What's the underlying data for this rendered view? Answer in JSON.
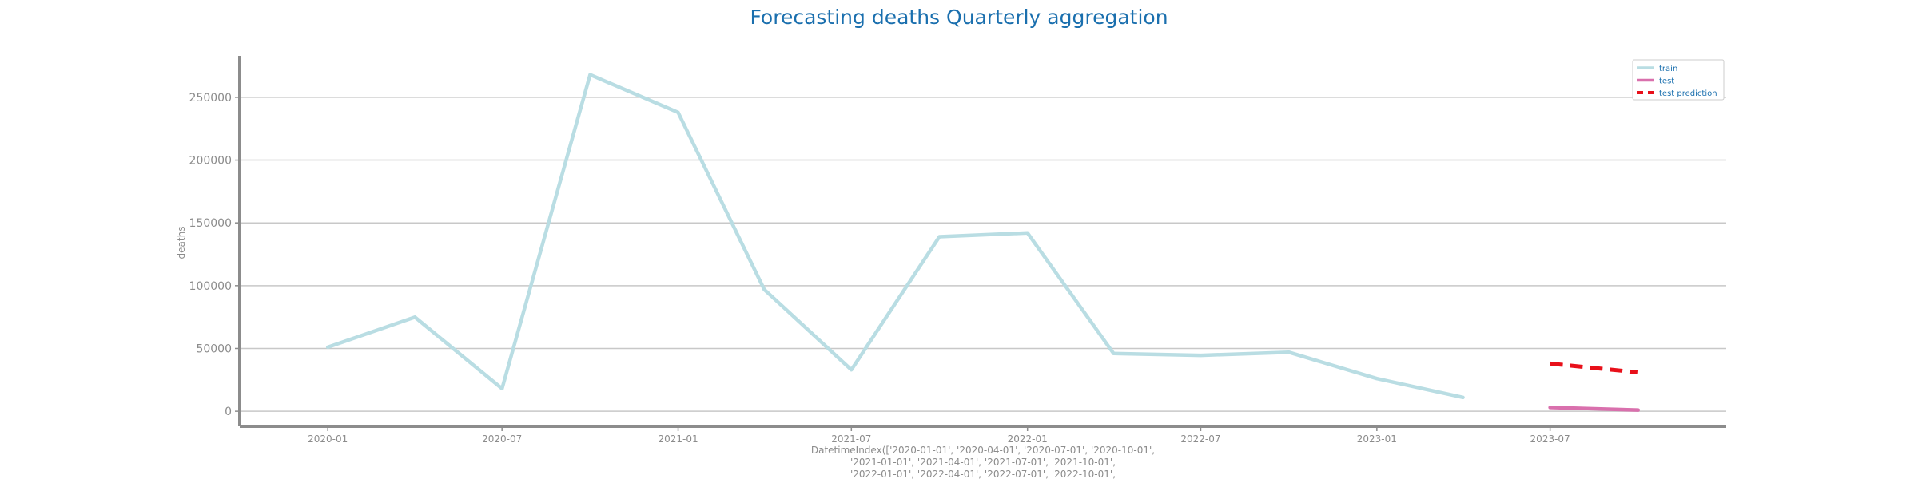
{
  "chart_data": {
    "type": "line",
    "title": "Forecasting deaths Quarterly aggregation",
    "ylabel": "deaths",
    "xlabel_lines": [
      "DatetimeIndex(['2020-01-01', '2020-04-01', '2020-07-01', '2020-10-01',",
      "'2021-01-01', '2021-04-01', '2021-07-01', '2021-10-01',",
      "'2022-01-01', '2022-04-01', '2022-07-01', '2022-10-01',"
    ],
    "x_tick_labels": [
      "2020-01",
      "2020-07",
      "2021-01",
      "2021-07",
      "2022-01",
      "2022-07",
      "2023-01",
      "2023-07"
    ],
    "x_ticks": [
      "2020-01-01",
      "2020-07-01",
      "2021-01-01",
      "2021-07-01",
      "2022-01-01",
      "2022-07-01",
      "2023-01-01",
      "2023-07-01"
    ],
    "y_ticks": [
      0,
      50000,
      100000,
      150000,
      200000,
      250000
    ],
    "y_tick_labels": [
      "0",
      "50000",
      "100000",
      "150000",
      "200000",
      "250000"
    ],
    "ylim": [
      -12000,
      283000
    ],
    "xlim": [
      "2019-10-01",
      "2024-01-01"
    ],
    "grid": "y",
    "legend_position": "top-right",
    "series": [
      {
        "name": "train",
        "color": "#b9dde3",
        "style": "solid",
        "x": [
          "2020-01-01",
          "2020-04-01",
          "2020-07-01",
          "2020-10-01",
          "2021-01-01",
          "2021-04-01",
          "2021-07-01",
          "2021-10-01",
          "2022-01-01",
          "2022-04-01",
          "2022-07-01",
          "2022-10-01",
          "2023-01-01",
          "2023-04-01"
        ],
        "values": [
          51000,
          75000,
          18000,
          268000,
          238000,
          97000,
          33000,
          139000,
          142000,
          46000,
          44500,
          47000,
          26000,
          11000
        ]
      },
      {
        "name": "test",
        "color": "#d970ad",
        "style": "solid",
        "x": [
          "2023-07-01",
          "2023-10-01"
        ],
        "values": [
          3000,
          1000
        ]
      },
      {
        "name": "test prediction",
        "color": "#e8101a",
        "style": "dashed",
        "x": [
          "2023-07-01",
          "2023-10-01"
        ],
        "values": [
          38000,
          31000
        ]
      }
    ]
  }
}
